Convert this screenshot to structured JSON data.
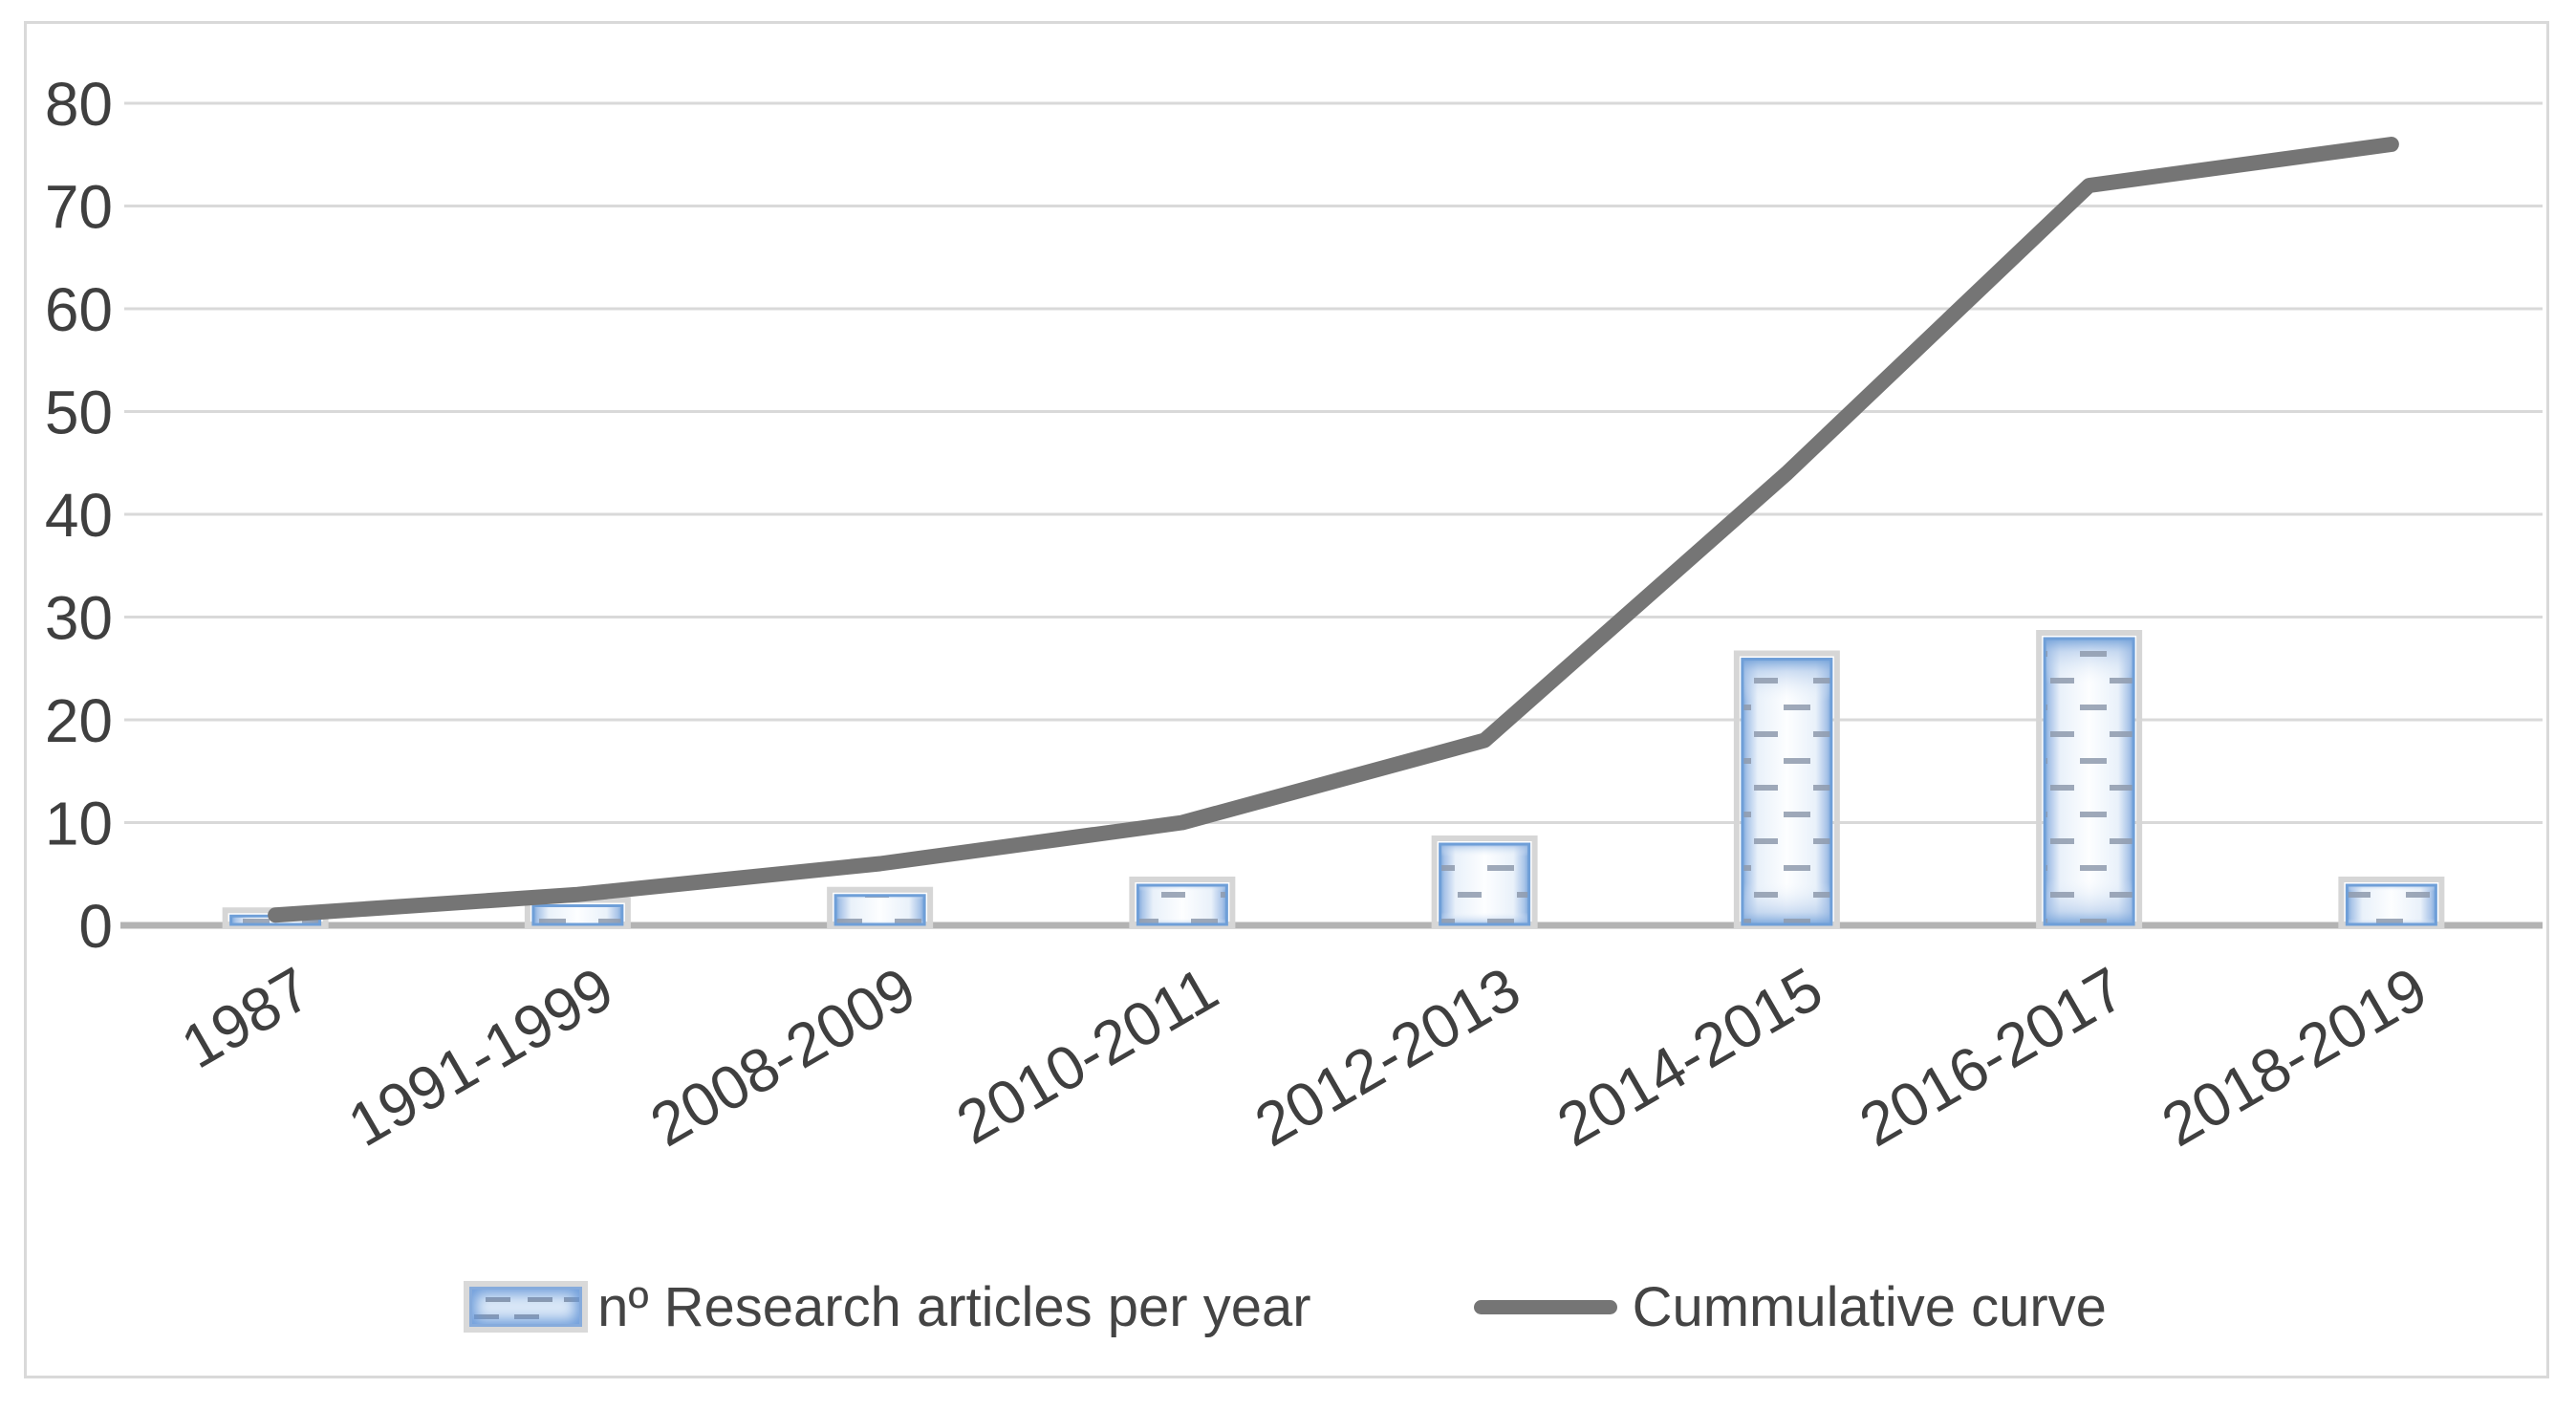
{
  "chart_data": {
    "type": "bar",
    "subtype": "bar-line-combo",
    "title": "",
    "xlabel": "",
    "ylabel": "",
    "categories": [
      "1987",
      "1991-1999",
      "2008-2009",
      "2010-2011",
      "2012-2013",
      "2014-2015",
      "2016-2017",
      "2018-2019"
    ],
    "series": [
      {
        "name": "nº Research articles per year",
        "type": "bar",
        "values": [
          1,
          2,
          3,
          4,
          8,
          26,
          28,
          4
        ]
      },
      {
        "name": "Cummulative curve",
        "type": "line",
        "values": [
          1,
          3,
          6,
          10,
          18,
          44,
          72,
          76
        ]
      }
    ],
    "ylim": [
      0,
      80
    ],
    "y_ticks": [
      0,
      10,
      20,
      30,
      40,
      50,
      60,
      70,
      80
    ],
    "grid": true,
    "legend_position": "bottom"
  },
  "legend": {
    "items": [
      {
        "label": "nº Research articles per year",
        "swatch": "blue-patterned-bar"
      },
      {
        "label": "Cummulative curve",
        "swatch": "gray-line"
      }
    ]
  },
  "colors": {
    "background": "#ffffff",
    "frame": "#d9d9d9",
    "gridline": "#d9d9d9",
    "axis_line": "#b3b3b3",
    "text": "#3f3f3f",
    "line_series": "#757575",
    "bar_edge": "#6f9fd8",
    "bar_edge_light": "#a9c4e8",
    "bar_fill": "#fdfeff",
    "bar_fill_mid": "#e9f1fa",
    "bar_dash": "#8e9aad",
    "bar_outer_border": "#d6d6d6"
  }
}
